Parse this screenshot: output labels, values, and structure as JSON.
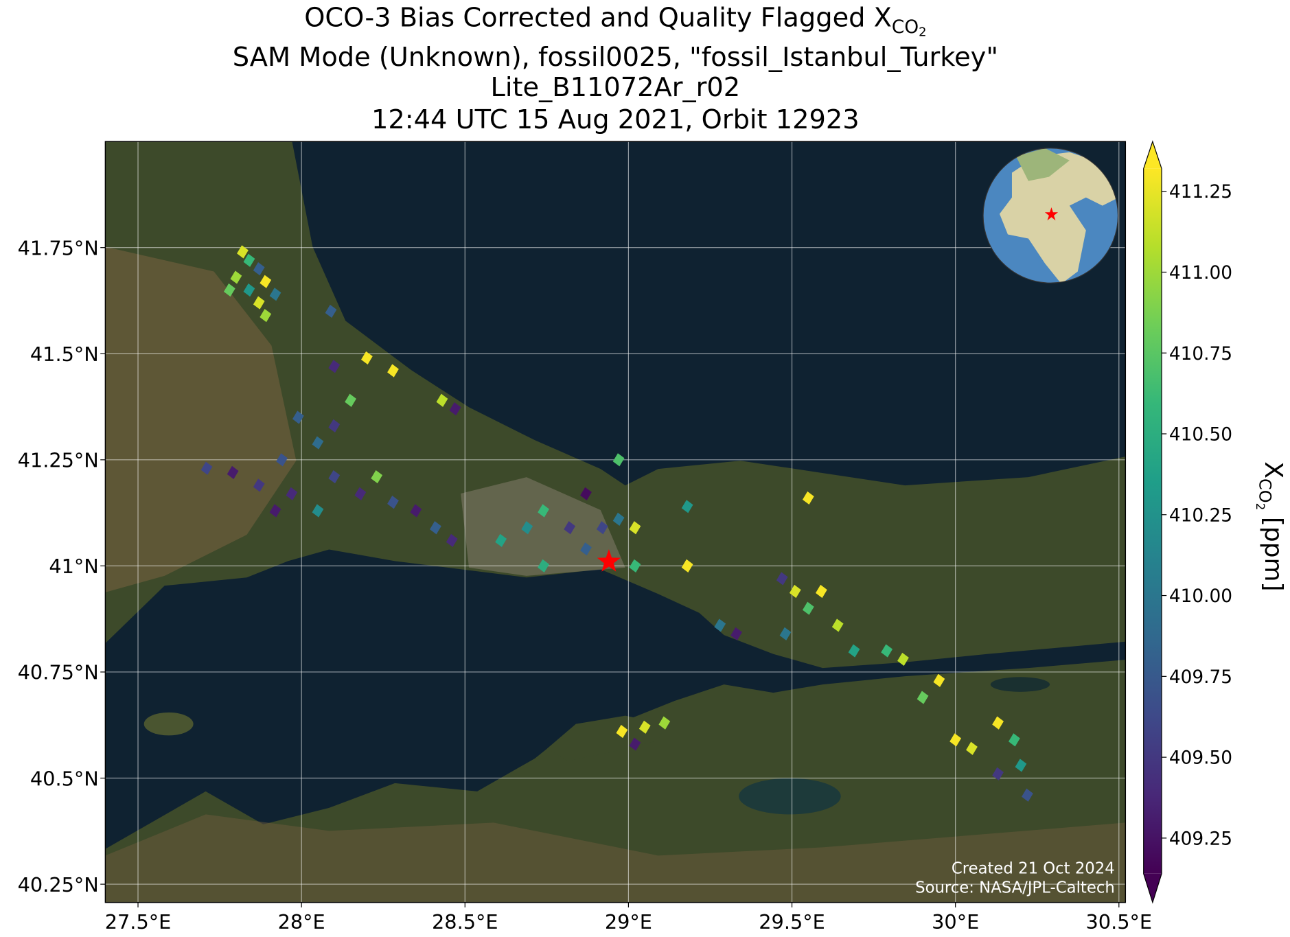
{
  "chart_data": {
    "type": "map",
    "title": [
      "OCO-3 Bias Corrected and Quality Flagged X",
      "SAM Mode (Unknown), fossil0025, \"fossil_Istanbul_Turkey\"",
      "Lite_B11072Ar_r02",
      "12:44 UTC 15 Aug 2021, Orbit 12923"
    ],
    "title_sub": "CO",
    "title_subsub": "2",
    "xlim": [
      27.4,
      30.52
    ],
    "ylim": [
      40.207,
      42.0
    ],
    "xticks": [
      {
        "value": 27.5,
        "label": "27.5°E"
      },
      {
        "value": 28,
        "label": "28°E"
      },
      {
        "value": 28.5,
        "label": "28.5°E"
      },
      {
        "value": 29,
        "label": "29°E"
      },
      {
        "value": 29.5,
        "label": "29.5°E"
      },
      {
        "value": 30,
        "label": "30°E"
      },
      {
        "value": 30.5,
        "label": "30.5°E"
      }
    ],
    "yticks": [
      {
        "value": 40.25,
        "label": "40.25°N"
      },
      {
        "value": 40.5,
        "label": "40.5°N"
      },
      {
        "value": 40.75,
        "label": "40.75°N"
      },
      {
        "value": 41,
        "label": "41°N"
      },
      {
        "value": 41.25,
        "label": "41.25°N"
      },
      {
        "value": 41.5,
        "label": "41.5°N"
      },
      {
        "value": 41.75,
        "label": "41.75°N"
      }
    ],
    "grid": true,
    "colormap": [
      "#440154",
      "#482878",
      "#3e4989",
      "#31688e",
      "#26828e",
      "#1f9e89",
      "#35b779",
      "#6ece58",
      "#b5de2b",
      "#fde725"
    ],
    "clim": [
      409.14,
      411.32
    ],
    "cticks": [
      {
        "value": 409.25,
        "label": "409.25"
      },
      {
        "value": 409.5,
        "label": "409.50"
      },
      {
        "value": 409.75,
        "label": "409.75"
      },
      {
        "value": 410,
        "label": "410.00"
      },
      {
        "value": 410.25,
        "label": "410.25"
      },
      {
        "value": 410.5,
        "label": "410.50"
      },
      {
        "value": 410.75,
        "label": "410.75"
      },
      {
        "value": 411,
        "label": "411.00"
      },
      {
        "value": 411.25,
        "label": "411.25"
      }
    ],
    "colorbar_label": {
      "base": "X",
      "sub": "CO",
      "subsub": "2",
      "unit": "[ppm]"
    },
    "target": {
      "lon": 28.94,
      "lat": 41.01
    },
    "footprints": {
      "lon": [
        27.82,
        27.84,
        27.87,
        27.8,
        27.89,
        27.84,
        27.78,
        27.92,
        27.87,
        27.89,
        27.71,
        27.79,
        27.87,
        27.94,
        27.97,
        28.05,
        28.1,
        28.15,
        28.18,
        28.23,
        28.28,
        28.35,
        28.41,
        28.46,
        28.05,
        27.92,
        28.1,
        27.99,
        28.61,
        28.69,
        28.74,
        28.82,
        28.87,
        28.92,
        28.97,
        29.02,
        28.74,
        28.87,
        29.47,
        29.51,
        29.55,
        29.59,
        29.64,
        29.69,
        29.48,
        29.79,
        29.84,
        29.9,
        29.95,
        30.0,
        30.05,
        30.13,
        30.18,
        30.2,
        30.13,
        30.22,
        28.1,
        28.2,
        28.28,
        28.43,
        28.47,
        28.97,
        29.18,
        29.55,
        29.18,
        29.02,
        28.98,
        29.05,
        29.11,
        29.02,
        28.09,
        29.28,
        29.33
      ],
      "lat": [
        41.74,
        41.72,
        41.7,
        41.68,
        41.67,
        41.65,
        41.65,
        41.64,
        41.62,
        41.59,
        41.23,
        41.22,
        41.19,
        41.25,
        41.17,
        41.29,
        41.21,
        41.39,
        41.17,
        41.21,
        41.15,
        41.13,
        41.09,
        41.06,
        41.13,
        41.13,
        41.33,
        41.35,
        41.06,
        41.09,
        41.13,
        41.09,
        41.17,
        41.09,
        41.11,
        41.09,
        41.0,
        41.04,
        40.97,
        40.94,
        40.9,
        40.94,
        40.86,
        40.8,
        40.84,
        40.8,
        40.78,
        40.69,
        40.73,
        40.59,
        40.57,
        40.63,
        40.59,
        40.53,
        40.51,
        40.46,
        41.47,
        41.49,
        41.46,
        41.39,
        41.37,
        41.25,
        41.14,
        41.16,
        41.0,
        41.0,
        40.61,
        40.62,
        40.63,
        40.58,
        41.6,
        40.86,
        40.84
      ],
      "values": [
        411.2,
        410.6,
        409.8,
        411.0,
        411.3,
        410.3,
        410.8,
        410.0,
        411.2,
        411.0,
        409.6,
        409.3,
        409.5,
        409.7,
        409.4,
        409.9,
        409.6,
        410.8,
        409.4,
        410.9,
        409.7,
        409.3,
        409.8,
        409.4,
        410.2,
        409.3,
        409.5,
        409.8,
        410.4,
        410.2,
        410.6,
        409.5,
        409.2,
        409.6,
        410.0,
        411.2,
        410.5,
        409.8,
        409.5,
        411.2,
        410.7,
        411.3,
        411.1,
        410.4,
        410.0,
        410.6,
        411.1,
        410.8,
        411.3,
        411.3,
        411.2,
        411.3,
        410.6,
        410.3,
        409.5,
        409.7,
        409.4,
        411.3,
        411.3,
        411.1,
        409.3,
        410.7,
        410.3,
        411.3,
        411.3,
        410.6,
        411.3,
        411.2,
        411.0,
        409.3,
        409.8,
        410.0,
        409.3
      ]
    },
    "credits": [
      "Created 21 Oct 2024",
      "Source: NASA/JPL-Caltech"
    ]
  }
}
